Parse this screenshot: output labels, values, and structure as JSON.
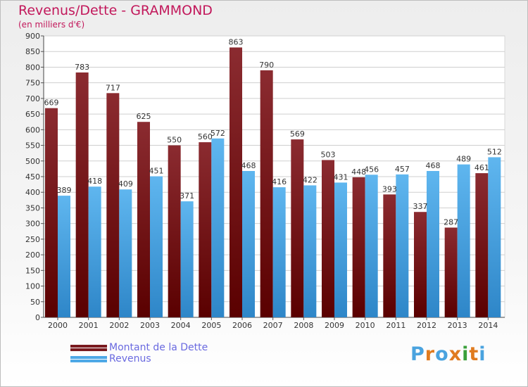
{
  "title": "Revenus/Dette - GRAMMOND",
  "subtitle": "(en milliers d'€)",
  "colors": {
    "dette": "#7a1a1f",
    "revenus": "#4ea8e6",
    "title": "#c2185b",
    "legend_text": "#6a6ae0"
  },
  "legend": [
    {
      "label": "Montant de la Dette",
      "color": "#7a1a1f"
    },
    {
      "label": "Revenus",
      "color": "#4ea8e6"
    }
  ],
  "logo": {
    "text": "Proxiti",
    "letters": [
      "P",
      "r",
      "o",
      "x",
      "i",
      "t",
      "i"
    ],
    "colors": [
      "#4aa3df",
      "#e07b1f",
      "#4aa3df",
      "#e07b1f",
      "#3aa03a",
      "#e07b1f",
      "#4aa3df"
    ]
  },
  "chart_data": {
    "type": "bar",
    "categories": [
      "2000",
      "2001",
      "2002",
      "2003",
      "2004",
      "2005",
      "2006",
      "2007",
      "2008",
      "2009",
      "2010",
      "2011",
      "2012",
      "2013",
      "2014"
    ],
    "series": [
      {
        "name": "Montant de la Dette",
        "values": [
          669,
          783,
          717,
          625,
          550,
          560,
          863,
          790,
          569,
          503,
          448,
          393,
          337,
          287,
          461
        ]
      },
      {
        "name": "Revenus",
        "values": [
          389,
          418,
          409,
          451,
          371,
          572,
          468,
          416,
          422,
          431,
          456,
          457,
          468,
          489,
          512
        ]
      }
    ],
    "ylim": [
      0,
      900
    ],
    "yticks": [
      "0",
      "50",
      "100",
      "150",
      "200",
      "250",
      "300",
      "350",
      "400",
      "450",
      "500",
      "550",
      "600",
      "650",
      "700",
      "750",
      "800",
      "850",
      "900"
    ],
    "grid": true,
    "legend_position": "bottom-left"
  }
}
